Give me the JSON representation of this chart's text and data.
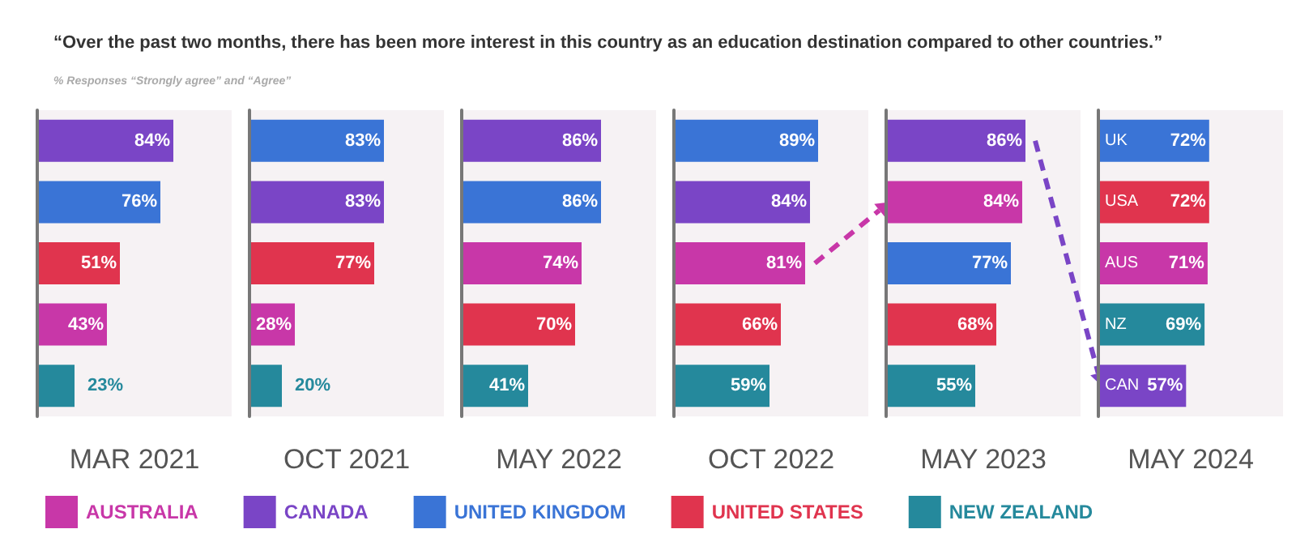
{
  "chart_data": [
    {
      "type": "bar",
      "orientation": "horizontal",
      "stacked": true,
      "title": "“Over the past two months, there has been more interest in this country as an education destination compared to other countries.”",
      "subtitle": "% Responses “Strongly agree” and “Agree”",
      "xlabel": "MAR 2021",
      "legend": "bottom",
      "tick_labels": false,
      "xlim": [
        0,
        120
      ],
      "categories": [
        null,
        null,
        null,
        null,
        null
      ],
      "series": [
        {
          "name": "AUSTRALIA",
          "color": "#c837a8",
          "values": [
            null,
            null,
            null,
            43,
            null
          ],
          "value_labels": [
            null,
            null,
            null,
            "43%",
            null
          ]
        },
        {
          "name": "CANADA",
          "color": "#7a45c6",
          "values": [
            84,
            null,
            null,
            null,
            null
          ],
          "value_labels": [
            "84%",
            null,
            null,
            null,
            null
          ]
        },
        {
          "name": "UNITED KINGDOM",
          "color": "#3a74d6",
          "values": [
            null,
            76,
            null,
            null,
            null
          ],
          "value_labels": [
            null,
            "76%",
            null,
            null,
            null
          ]
        },
        {
          "name": "UNITED STATES",
          "color": "#e0344e",
          "values": [
            null,
            null,
            51,
            null,
            null
          ],
          "value_labels": [
            null,
            null,
            "51%",
            null,
            null
          ]
        },
        {
          "name": "NEW ZEALAND",
          "color": "#25899c",
          "values": [
            null,
            null,
            null,
            null,
            23
          ],
          "value_labels": [
            null,
            null,
            null,
            null,
            "23%"
          ]
        }
      ]
    },
    {
      "type": "bar",
      "orientation": "horizontal",
      "stacked": true,
      "xlabel": "OCT 2021",
      "tick_labels": false,
      "xlim": [
        0,
        120
      ],
      "categories": [
        null,
        null,
        null,
        null,
        null
      ],
      "series": [
        {
          "name": "AUSTRALIA",
          "color": "#c837a8",
          "values": [
            null,
            null,
            null,
            28,
            null
          ],
          "value_labels": [
            null,
            null,
            null,
            "28%",
            null
          ]
        },
        {
          "name": "CANADA",
          "color": "#7a45c6",
          "values": [
            null,
            83,
            null,
            null,
            null
          ],
          "value_labels": [
            null,
            "83%",
            null,
            null,
            null
          ]
        },
        {
          "name": "UNITED KINGDOM",
          "color": "#3a74d6",
          "values": [
            83,
            null,
            null,
            null,
            null
          ],
          "value_labels": [
            "83%",
            null,
            null,
            null,
            null
          ]
        },
        {
          "name": "UNITED STATES",
          "color": "#e0344e",
          "values": [
            null,
            null,
            77,
            null,
            null
          ],
          "value_labels": [
            null,
            null,
            "77%",
            null,
            null
          ]
        },
        {
          "name": "NEW ZEALAND",
          "color": "#25899c",
          "values": [
            null,
            null,
            null,
            null,
            20
          ],
          "value_labels": [
            null,
            null,
            null,
            null,
            "20%"
          ]
        }
      ]
    },
    {
      "type": "bar",
      "orientation": "horizontal",
      "stacked": true,
      "xlabel": "MAY 2022",
      "tick_labels": false,
      "xlim": [
        0,
        120
      ],
      "categories": [
        null,
        null,
        null,
        null,
        null
      ],
      "series": [
        {
          "name": "AUSTRALIA",
          "color": "#c837a8",
          "values": [
            null,
            null,
            74,
            null,
            null
          ],
          "value_labels": [
            null,
            null,
            "74%",
            null,
            null
          ]
        },
        {
          "name": "CANADA",
          "color": "#7a45c6",
          "values": [
            86,
            null,
            null,
            null,
            null
          ],
          "value_labels": [
            "86%",
            null,
            null,
            null,
            null
          ]
        },
        {
          "name": "UNITED KINGDOM",
          "color": "#3a74d6",
          "values": [
            null,
            86,
            null,
            null,
            null
          ],
          "value_labels": [
            null,
            "86%",
            null,
            null,
            null
          ]
        },
        {
          "name": "UNITED STATES",
          "color": "#e0344e",
          "values": [
            null,
            null,
            null,
            70,
            null
          ],
          "value_labels": [
            null,
            null,
            null,
            "70%",
            null
          ]
        },
        {
          "name": "NEW ZEALAND",
          "color": "#25899c",
          "values": [
            null,
            null,
            null,
            null,
            41
          ],
          "value_labels": [
            null,
            null,
            null,
            null,
            "41%"
          ]
        }
      ]
    },
    {
      "type": "bar",
      "orientation": "horizontal",
      "stacked": true,
      "xlabel": "OCT 2022",
      "tick_labels": false,
      "xlim": [
        0,
        120
      ],
      "categories": [
        null,
        null,
        null,
        null,
        null
      ],
      "series": [
        {
          "name": "AUSTRALIA",
          "color": "#c837a8",
          "values": [
            null,
            null,
            81,
            null,
            null
          ],
          "value_labels": [
            null,
            null,
            "81%",
            null,
            null
          ]
        },
        {
          "name": "CANADA",
          "color": "#7a45c6",
          "values": [
            null,
            84,
            null,
            null,
            null
          ],
          "value_labels": [
            null,
            "84%",
            null,
            null,
            null
          ]
        },
        {
          "name": "UNITED KINGDOM",
          "color": "#3a74d6",
          "values": [
            89,
            null,
            null,
            null,
            null
          ],
          "value_labels": [
            "89%",
            null,
            null,
            null,
            null
          ]
        },
        {
          "name": "UNITED STATES",
          "color": "#e0344e",
          "values": [
            null,
            null,
            null,
            66,
            null
          ],
          "value_labels": [
            null,
            null,
            null,
            "66%",
            null
          ]
        },
        {
          "name": "NEW ZEALAND",
          "color": "#25899c",
          "values": [
            null,
            null,
            null,
            null,
            59
          ],
          "value_labels": [
            null,
            null,
            null,
            null,
            "59%"
          ]
        }
      ]
    },
    {
      "type": "bar",
      "orientation": "horizontal",
      "stacked": true,
      "xlabel": "MAY 2023",
      "tick_labels": false,
      "xlim": [
        0,
        120
      ],
      "categories": [
        null,
        null,
        null,
        null,
        null
      ],
      "series": [
        {
          "name": "AUSTRALIA",
          "color": "#c837a8",
          "values": [
            null,
            84,
            null,
            null,
            null
          ],
          "value_labels": [
            null,
            "84%",
            null,
            null,
            null
          ]
        },
        {
          "name": "CANADA",
          "color": "#7a45c6",
          "values": [
            86,
            null,
            null,
            null,
            null
          ],
          "value_labels": [
            "86%",
            null,
            null,
            null,
            null
          ]
        },
        {
          "name": "UNITED KINGDOM",
          "color": "#3a74d6",
          "values": [
            null,
            null,
            77,
            null,
            null
          ],
          "value_labels": [
            null,
            null,
            "77%",
            null,
            null
          ]
        },
        {
          "name": "UNITED STATES",
          "color": "#e0344e",
          "values": [
            null,
            null,
            null,
            68,
            null
          ],
          "value_labels": [
            null,
            null,
            null,
            "68%",
            null
          ]
        },
        {
          "name": "NEW ZEALAND",
          "color": "#25899c",
          "values": [
            null,
            null,
            null,
            null,
            55
          ],
          "value_labels": [
            null,
            null,
            null,
            null,
            "55%"
          ]
        }
      ]
    },
    {
      "type": "bar",
      "orientation": "horizontal",
      "stacked": true,
      "xlabel": "MAY 2024",
      "tick_labels": "y",
      "xlim": [
        0,
        120
      ],
      "categories": [
        "UK",
        "USA",
        "AUS",
        "NZ",
        "CAN"
      ],
      "series": [
        {
          "name": "AUSTRALIA",
          "color": "#c837a8",
          "values": [
            null,
            null,
            71,
            null,
            null
          ],
          "value_labels": [
            null,
            null,
            "71%",
            null,
            null
          ]
        },
        {
          "name": "CANADA",
          "color": "#7a45c6",
          "values": [
            null,
            null,
            null,
            null,
            57
          ],
          "value_labels": [
            null,
            null,
            null,
            null,
            "57%"
          ]
        },
        {
          "name": "UNITED KINGDOM",
          "color": "#3a74d6",
          "values": [
            72,
            null,
            null,
            null,
            null
          ],
          "value_labels": [
            "72%",
            null,
            null,
            null,
            null
          ]
        },
        {
          "name": "UNITED STATES",
          "color": "#e0344e",
          "values": [
            null,
            72,
            null,
            null,
            null
          ],
          "value_labels": [
            null,
            "72%",
            null,
            null,
            null
          ]
        },
        {
          "name": "NEW ZEALAND",
          "color": "#25899c",
          "values": [
            null,
            null,
            null,
            69,
            null
          ],
          "value_labels": [
            null,
            null,
            null,
            "69%",
            null
          ]
        }
      ]
    }
  ]
}
